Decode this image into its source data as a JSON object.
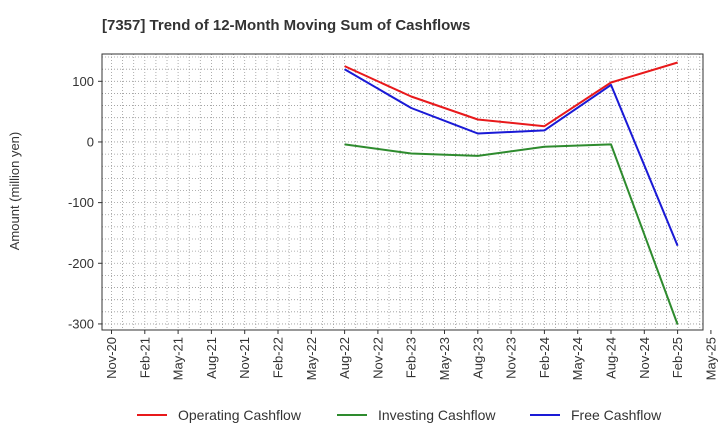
{
  "chart_data": {
    "type": "line",
    "title": "[7357]  Trend of 12-Month Moving Sum of Cashflows",
    "ylabel": "Amount (million yen)",
    "xlabel": "",
    "ylim": [
      -310,
      145
    ],
    "yticks": [
      100,
      0,
      -100,
      -200,
      -300
    ],
    "ytick_labels": [
      "100",
      "0",
      "-100",
      "-200",
      "-300"
    ],
    "x_ticks": [
      "Nov-20",
      "Feb-21",
      "May-21",
      "Aug-21",
      "Nov-21",
      "Feb-22",
      "May-22",
      "Aug-22",
      "Nov-22",
      "Feb-23",
      "May-23",
      "Aug-23",
      "Nov-23",
      "Feb-24",
      "May-24",
      "Aug-24",
      "Nov-24",
      "Feb-25",
      "May-25"
    ],
    "grid": true,
    "legend_position": "bottom",
    "series": [
      {
        "name": "Operating Cashflow",
        "color": "#e8191b",
        "points": [
          [
            "Aug-22",
            125
          ],
          [
            "Feb-23",
            75
          ],
          [
            "Aug-23",
            37
          ],
          [
            "Feb-24",
            26
          ],
          [
            "Aug-24",
            98
          ],
          [
            "Feb-25",
            131
          ]
        ]
      },
      {
        "name": "Investing Cashflow",
        "color": "#2e8b2e",
        "points": [
          [
            "Aug-22",
            -4
          ],
          [
            "Feb-23",
            -19
          ],
          [
            "Aug-23",
            -23
          ],
          [
            "Feb-24",
            -8
          ],
          [
            "Aug-24",
            -4
          ],
          [
            "Feb-25",
            -301
          ]
        ]
      },
      {
        "name": "Free Cashflow",
        "color": "#1a1ad6",
        "points": [
          [
            "Aug-22",
            120
          ],
          [
            "Feb-23",
            56
          ],
          [
            "Aug-23",
            14
          ],
          [
            "Feb-24",
            19
          ],
          [
            "Aug-24",
            94
          ],
          [
            "Feb-25",
            -171
          ]
        ]
      }
    ]
  }
}
